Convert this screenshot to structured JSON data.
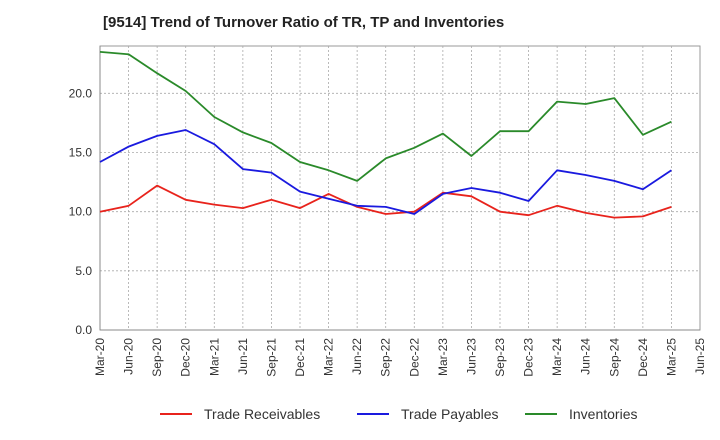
{
  "chart_data": {
    "type": "line",
    "title": "[9514]  Trend of Turnover Ratio of TR, TP and Inventories",
    "xlabel": "",
    "ylabel": "",
    "ylim": [
      0,
      24
    ],
    "y_ticks": [
      "0.0",
      "5.0",
      "10.0",
      "15.0",
      "20.0"
    ],
    "x_ticks": [
      "Mar-20",
      "Jun-20",
      "Sep-20",
      "Dec-20",
      "Mar-21",
      "Jun-21",
      "Sep-21",
      "Dec-21",
      "Mar-22",
      "Jun-22",
      "Sep-22",
      "Dec-22",
      "Mar-23",
      "Jun-23",
      "Sep-23",
      "Dec-23",
      "Mar-24",
      "Jun-24",
      "Sep-24",
      "Dec-24",
      "Mar-25",
      "Jun-25"
    ],
    "categories": [
      "Mar-20",
      "Jun-20",
      "Sep-20",
      "Dec-20",
      "Mar-21",
      "Jun-21",
      "Sep-21",
      "Dec-21",
      "Mar-22",
      "Jun-22",
      "Sep-22",
      "Dec-22",
      "Mar-23",
      "Jun-23",
      "Sep-23",
      "Dec-23",
      "Mar-24",
      "Jun-24",
      "Sep-24",
      "Dec-24",
      "Mar-25"
    ],
    "grid": true,
    "legend_position": "bottom",
    "series": [
      {
        "name": "Trade Receivables",
        "color": "#e8231c",
        "values": [
          10.0,
          10.5,
          12.2,
          11.0,
          10.6,
          10.3,
          11.0,
          10.3,
          11.5,
          10.4,
          9.8,
          10.0,
          11.6,
          11.3,
          10.0,
          9.7,
          10.5,
          9.9,
          9.5,
          9.6,
          10.4
        ]
      },
      {
        "name": "Trade Payables",
        "color": "#1a1adf",
        "values": [
          14.2,
          15.5,
          16.4,
          16.9,
          15.7,
          13.6,
          13.3,
          11.7,
          11.1,
          10.5,
          10.4,
          9.8,
          11.5,
          12.0,
          11.6,
          10.9,
          13.5,
          13.1,
          12.6,
          11.9,
          13.5
        ]
      },
      {
        "name": "Inventories",
        "color": "#2a8a2a",
        "values": [
          23.5,
          23.3,
          21.7,
          20.2,
          18.0,
          16.7,
          15.8,
          14.2,
          13.5,
          12.6,
          14.5,
          15.4,
          16.6,
          14.7,
          16.8,
          16.8,
          19.3,
          19.1,
          19.6,
          16.5,
          17.6
        ]
      }
    ]
  }
}
